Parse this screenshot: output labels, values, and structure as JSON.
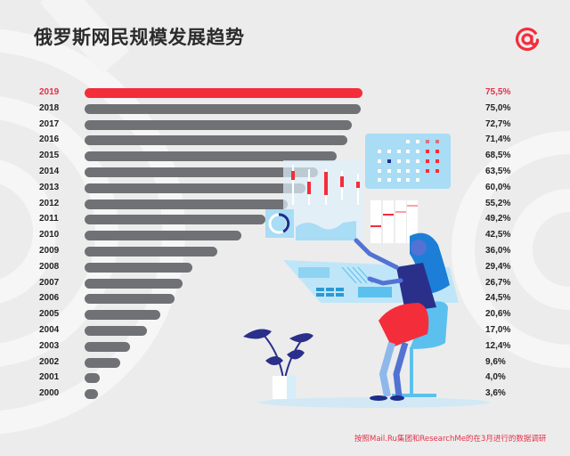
{
  "header": {
    "title": "俄罗斯网民规模发展趋势",
    "logo_icon": "at-sign-icon",
    "logo_color": "#f42d3b"
  },
  "colors": {
    "highlight": "#f42d3b",
    "bar": "#6f7174",
    "background": "#ececec",
    "text": "#222222"
  },
  "footnote": "按照Mail.Ru集团和ResearchMe的在3月进行的数据调研",
  "chart_data": {
    "type": "bar",
    "orientation": "horizontal",
    "title": "俄罗斯网民规模发展趋势",
    "xlabel": "",
    "ylabel": "",
    "categories": [
      "2019",
      "2018",
      "2017",
      "2016",
      "2015",
      "2014",
      "2013",
      "2012",
      "2011",
      "2010",
      "2009",
      "2008",
      "2007",
      "2006",
      "2005",
      "2004",
      "2003",
      "2002",
      "2001",
      "2000"
    ],
    "values": [
      75.5,
      75.0,
      72.7,
      71.4,
      68.5,
      63.5,
      60.0,
      55.2,
      49.2,
      42.5,
      36.0,
      29.4,
      26.7,
      24.5,
      20.6,
      17.0,
      12.4,
      9.6,
      4.0,
      3.6
    ],
    "labels": [
      "75,5%",
      "75,0%",
      "72,7%",
      "71,4%",
      "68,5%",
      "63,5%",
      "60,0%",
      "55,2%",
      "49,2%",
      "42,5%",
      "36,0%",
      "29,4%",
      "26,7%",
      "24,5%",
      "20,6%",
      "17,0%",
      "12,4%",
      "9,6%",
      "4,0%",
      "3,6%"
    ],
    "highlighted": "2019",
    "unit": "%",
    "grid": false,
    "legend": null,
    "source_note": "按照Mail.Ru集团和ResearchMe的在3月进行的数据调研"
  }
}
